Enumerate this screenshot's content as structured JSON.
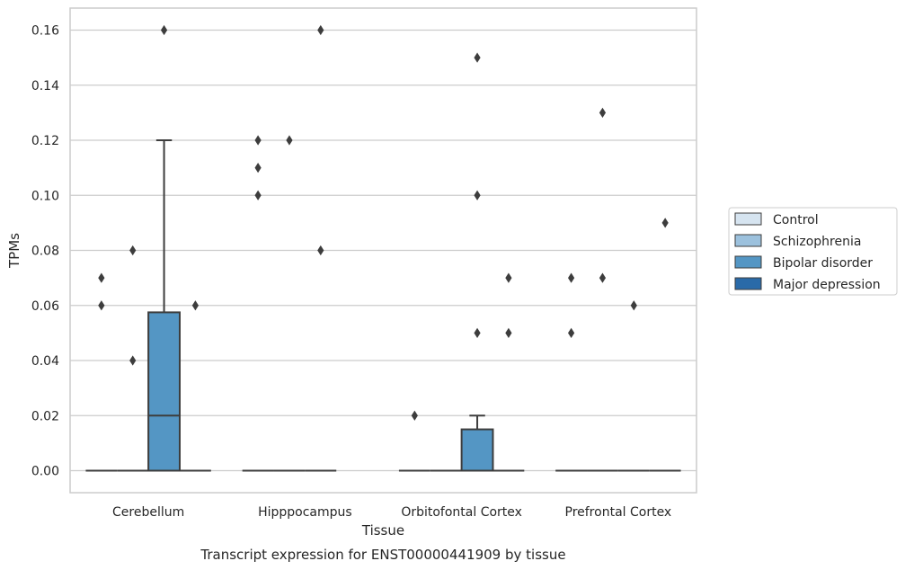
{
  "caption": "Transcript expression for ENST00000441909 by tissue",
  "chart_data": {
    "type": "box",
    "title": "",
    "xlabel": "Tissue",
    "ylabel": "TPMs",
    "ylim": [
      -0.008,
      0.168
    ],
    "yticks": [
      "0.00",
      "0.02",
      "0.04",
      "0.06",
      "0.08",
      "0.10",
      "0.12",
      "0.14",
      "0.16"
    ],
    "ytick_values": [
      0.0,
      0.02,
      0.04,
      0.06,
      0.08,
      0.1,
      0.12,
      0.14,
      0.16
    ],
    "grid": "horizontal",
    "legend_position": "right",
    "categories": [
      "Cerebellum",
      "Hipppocampus",
      "Orbitofontal Cortex",
      "Prefrontal Cortex"
    ],
    "series": [
      {
        "name": "Control",
        "color": "#d6e4f0",
        "boxes": [
          {
            "q1": 0.0,
            "median": 0.0,
            "q3": 0.0,
            "whisker_low": 0.0,
            "whisker_high": 0.0,
            "outliers": [
              0.07,
              0.06
            ]
          },
          {
            "q1": 0.0,
            "median": 0.0,
            "q3": 0.0,
            "whisker_low": 0.0,
            "whisker_high": 0.0,
            "outliers": [
              0.12,
              0.11,
              0.1
            ]
          },
          {
            "q1": 0.0,
            "median": 0.0,
            "q3": 0.0,
            "whisker_low": 0.0,
            "whisker_high": 0.0,
            "outliers": [
              0.02
            ]
          },
          {
            "q1": 0.0,
            "median": 0.0,
            "q3": 0.0,
            "whisker_low": 0.0,
            "whisker_high": 0.0,
            "outliers": [
              0.07,
              0.05
            ]
          }
        ]
      },
      {
        "name": "Schizophrenia",
        "color": "#9cc1dd",
        "boxes": [
          {
            "q1": 0.0,
            "median": 0.0,
            "q3": 0.0,
            "whisker_low": 0.0,
            "whisker_high": 0.0,
            "outliers": [
              0.08,
              0.04
            ]
          },
          {
            "q1": 0.0,
            "median": 0.0,
            "q3": 0.0,
            "whisker_low": 0.0,
            "whisker_high": 0.0,
            "outliers": [
              0.12
            ]
          },
          {
            "q1": 0.0,
            "median": 0.0,
            "q3": 0.0,
            "whisker_low": 0.0,
            "whisker_high": 0.0,
            "outliers": []
          },
          {
            "q1": 0.0,
            "median": 0.0,
            "q3": 0.0,
            "whisker_low": 0.0,
            "whisker_high": 0.0,
            "outliers": [
              0.13,
              0.07
            ]
          }
        ]
      },
      {
        "name": "Bipolar disorder",
        "color": "#5496c4",
        "boxes": [
          {
            "q1": 0.0,
            "median": 0.02,
            "q3": 0.0575,
            "whisker_low": 0.0,
            "whisker_high": 0.12,
            "outliers": [
              0.16
            ]
          },
          {
            "q1": 0.0,
            "median": 0.0,
            "q3": 0.0,
            "whisker_low": 0.0,
            "whisker_high": 0.0,
            "outliers": [
              0.16,
              0.08
            ]
          },
          {
            "q1": 0.0,
            "median": 0.0,
            "q3": 0.015,
            "whisker_low": 0.0,
            "whisker_high": 0.02,
            "outliers": [
              0.15,
              0.1,
              0.05
            ]
          },
          {
            "q1": 0.0,
            "median": 0.0,
            "q3": 0.0,
            "whisker_low": 0.0,
            "whisker_high": 0.0,
            "outliers": [
              0.06
            ]
          }
        ]
      },
      {
        "name": "Major depression",
        "color": "#2a6aa8",
        "boxes": [
          {
            "q1": 0.0,
            "median": 0.0,
            "q3": 0.0,
            "whisker_low": 0.0,
            "whisker_high": 0.0,
            "outliers": [
              0.06
            ]
          },
          null,
          {
            "q1": 0.0,
            "median": 0.0,
            "q3": 0.0,
            "whisker_low": 0.0,
            "whisker_high": 0.0,
            "outliers": [
              0.07,
              0.05
            ]
          },
          {
            "q1": 0.0,
            "median": 0.0,
            "q3": 0.0,
            "whisker_low": 0.0,
            "whisker_high": 0.0,
            "outliers": [
              0.09
            ]
          }
        ]
      }
    ]
  }
}
